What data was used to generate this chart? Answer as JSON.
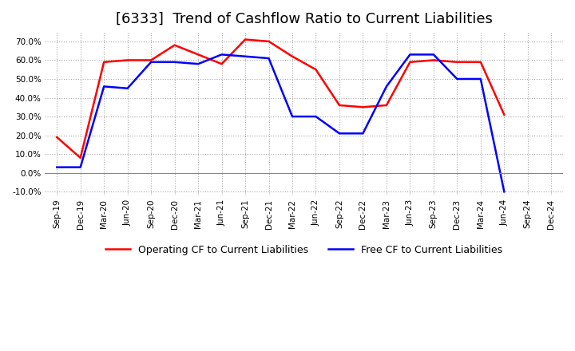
{
  "title": "[6333]  Trend of Cashflow Ratio to Current Liabilities",
  "ylim": [
    -0.12,
    0.75
  ],
  "yticks": [
    -0.1,
    0.0,
    0.1,
    0.2,
    0.3,
    0.4,
    0.5,
    0.6,
    0.7
  ],
  "x_labels": [
    "Sep-19",
    "Dec-19",
    "Mar-20",
    "Jun-20",
    "Sep-20",
    "Dec-20",
    "Mar-21",
    "Jun-21",
    "Sep-21",
    "Dec-21",
    "Mar-22",
    "Jun-22",
    "Sep-22",
    "Dec-22",
    "Mar-23",
    "Jun-23",
    "Sep-23",
    "Dec-23",
    "Mar-24",
    "Jun-24",
    "Sep-24",
    "Dec-24"
  ],
  "operating_cf": [
    0.19,
    0.08,
    0.59,
    0.6,
    0.6,
    0.68,
    0.63,
    0.58,
    0.71,
    0.7,
    0.62,
    0.55,
    0.36,
    0.35,
    0.36,
    0.59,
    0.6,
    0.59,
    0.59,
    0.31,
    null,
    null
  ],
  "free_cf": [
    0.03,
    0.03,
    0.46,
    0.45,
    0.59,
    0.59,
    0.58,
    0.63,
    0.62,
    0.61,
    0.3,
    0.3,
    0.21,
    0.21,
    0.46,
    0.63,
    0.63,
    0.5,
    0.5,
    -0.1,
    null,
    null
  ],
  "operating_cf_color": "#ff0000",
  "free_cf_color": "#0000ff",
  "grid_color": "#aaaaaa",
  "zero_line_color": "#888888",
  "background_color": "#ffffff",
  "title_fontsize": 13,
  "legend_labels": [
    "Operating CF to Current Liabilities",
    "Free CF to Current Liabilities"
  ]
}
